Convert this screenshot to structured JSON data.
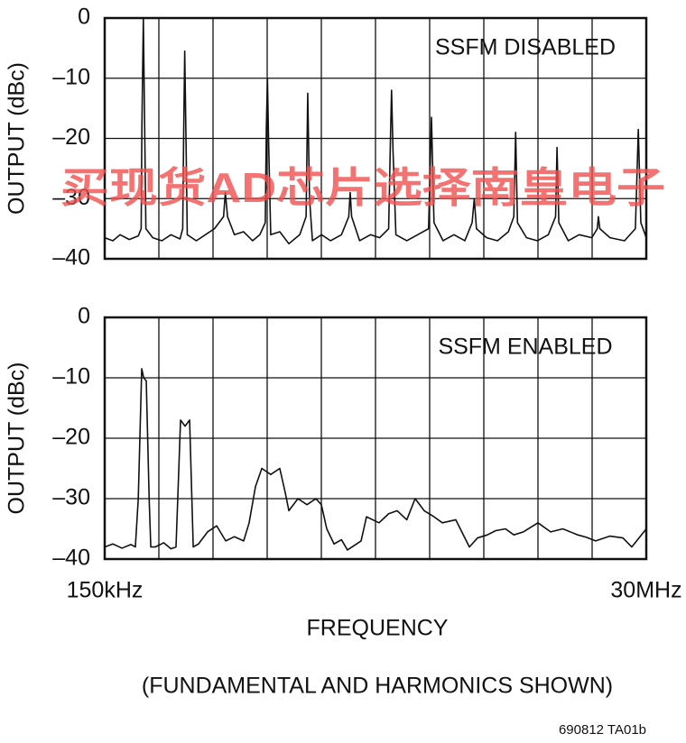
{
  "chart_data": [
    {
      "type": "line",
      "annotation": "SSFM DISABLED",
      "ylabel": "OUTPUT (dBc)",
      "color": "#111111",
      "xlim": [
        0.15,
        30
      ],
      "xgrid": [
        0.15,
        3.135,
        6.12,
        9.105,
        12.09,
        15.075,
        18.06,
        21.045,
        24.03,
        27.015,
        30
      ],
      "grid": true,
      "ylim": [
        -40,
        0
      ],
      "yticks": [
        0,
        {
          "value": -10,
          "label": "–10"
        },
        {
          "value": -20,
          "label": "–20"
        },
        {
          "value": -30,
          "label": "–30"
        },
        {
          "value": -40,
          "label": "–40"
        }
      ],
      "x": [
        0.15,
        0.6,
        1.0,
        1.5,
        2.0,
        2.16,
        2.2,
        2.28,
        2.36,
        2.42,
        2.8,
        3.3,
        3.8,
        4.3,
        4.45,
        4.5,
        4.56,
        4.64,
        4.7,
        5.2,
        5.7,
        6.2,
        6.7,
        6.8,
        6.92,
        7.3,
        7.8,
        8.3,
        8.7,
        9.0,
        9.06,
        9.12,
        9.18,
        9.3,
        9.8,
        10.3,
        10.9,
        11.25,
        11.34,
        11.44,
        11.6,
        12.1,
        12.6,
        13.2,
        13.6,
        13.68,
        13.76,
        14.2,
        14.8,
        15.3,
        15.8,
        15.9,
        15.96,
        16.04,
        16.2,
        16.8,
        17.4,
        18.0,
        18.16,
        18.3,
        18.8,
        19.4,
        20.0,
        20.4,
        20.52,
        20.64,
        21.2,
        21.8,
        22.4,
        22.7,
        22.8,
        22.9,
        23.4,
        24.0,
        24.6,
        25.0,
        25.08,
        25.18,
        25.7,
        26.3,
        27.0,
        27.3,
        27.36,
        27.44,
        28.0,
        28.8,
        29.4,
        29.56,
        29.7,
        30.0
      ],
      "values": [
        -36.5,
        -37,
        -36,
        -36.8,
        -36.2,
        -35,
        -18,
        0,
        -20,
        -35,
        -36.5,
        -37,
        -36,
        -36.7,
        -35,
        -20,
        -5.5,
        -22,
        -36,
        -37,
        -36,
        -35,
        -33,
        -29,
        -33,
        -36,
        -35.5,
        -37,
        -36,
        -34,
        -18,
        -10,
        -20,
        -36,
        -35.5,
        -37.5,
        -36,
        -33,
        -12.5,
        -30,
        -37,
        -36,
        -37,
        -36,
        -33,
        -29,
        -33,
        -37,
        -36,
        -36.5,
        -35,
        -20,
        -12,
        -22,
        -36,
        -37,
        -36,
        -35,
        -16.5,
        -34,
        -37,
        -36,
        -37,
        -34,
        -30,
        -35,
        -36.5,
        -37,
        -35.5,
        -33,
        -19,
        -34,
        -36.5,
        -37,
        -36,
        -33,
        -21.5,
        -34,
        -37,
        -36,
        -36.5,
        -35,
        -33,
        -35,
        -36.5,
        -37,
        -35,
        -18.5,
        -34,
        -36.5
      ]
    },
    {
      "type": "line",
      "annotation": "SSFM ENABLED",
      "ylabel": "OUTPUT (dBc)",
      "color": "#111111",
      "xlabel": "FREQUENCY",
      "caption": "(FUNDAMENTAL AND HARMONICS SHOWN)",
      "xlim": [
        0.15,
        30
      ],
      "xticks": [
        {
          "value": 0.15,
          "label": "150kHz"
        },
        {
          "value": 30,
          "label": "30MHz"
        }
      ],
      "xgrid": [
        0.15,
        3.135,
        6.12,
        9.105,
        12.09,
        15.075,
        18.06,
        21.045,
        24.03,
        27.015,
        30
      ],
      "grid": true,
      "ylim": [
        -40,
        0
      ],
      "yticks": [
        0,
        {
          "value": -10,
          "label": "–10"
        },
        {
          "value": -20,
          "label": "–20"
        },
        {
          "value": -30,
          "label": "–30"
        },
        {
          "value": -40,
          "label": "–40"
        }
      ],
      "x": [
        0.15,
        0.6,
        1.1,
        1.6,
        1.84,
        2.0,
        2.19,
        2.3,
        2.44,
        2.6,
        2.69,
        2.94,
        3.4,
        3.8,
        4.08,
        4.2,
        4.33,
        4.58,
        4.83,
        5.03,
        5.32,
        5.82,
        6.32,
        6.82,
        7.3,
        7.81,
        8.11,
        8.46,
        8.81,
        9.3,
        9.8,
        10.1,
        10.3,
        10.8,
        11.3,
        11.79,
        12.09,
        12.39,
        12.79,
        13.2,
        13.53,
        14.28,
        14.58,
        15.27,
        15.8,
        16.27,
        16.8,
        17.26,
        17.76,
        18.3,
        18.76,
        19.5,
        19.75,
        20.25,
        20.7,
        21.24,
        21.7,
        22.24,
        22.7,
        23.23,
        24.03,
        24.73,
        25.4,
        26.22,
        26.7,
        27.21,
        28.0,
        28.71,
        29.2,
        30.0
      ],
      "values": [
        -38,
        -37.5,
        -38.2,
        -37.6,
        -38,
        -30,
        -8.5,
        -10,
        -10.5,
        -30,
        -38,
        -38,
        -37.3,
        -38.3,
        -38,
        -28,
        -17,
        -18,
        -17,
        -38,
        -37.5,
        -35.5,
        -34.5,
        -37,
        -36.3,
        -37,
        -34,
        -28,
        -25,
        -26,
        -25,
        -29,
        -32,
        -30,
        -31,
        -30,
        -31,
        -35,
        -37.5,
        -36.8,
        -38.5,
        -37,
        -33,
        -34,
        -32.5,
        -32,
        -33.5,
        -30,
        -32,
        -33,
        -34,
        -33.5,
        -35,
        -38,
        -36.5,
        -36,
        -35.3,
        -35,
        -36,
        -35.5,
        -34,
        -35.5,
        -35,
        -36,
        -36.4,
        -37,
        -36.2,
        -36.5,
        -38,
        -35
      ]
    }
  ],
  "watermark": "买现货AD芯片选择南皇电子",
  "figure_id": "690812 TA01b"
}
